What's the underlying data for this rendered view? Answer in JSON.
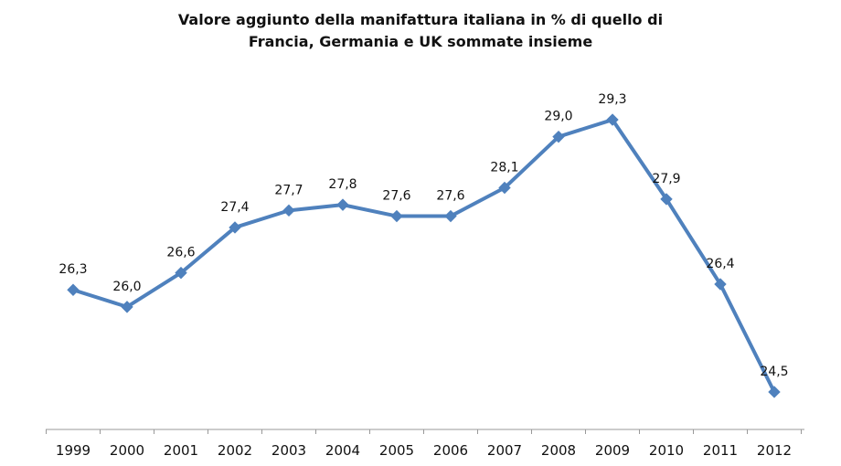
{
  "chart_data": {
    "type": "line",
    "title_lines": [
      "Valore aggiunto della manifattura italiana in % di quello di",
      "Francia, Germania e UK sommate insieme"
    ],
    "xlabel": "",
    "ylabel": "",
    "categories": [
      "1999",
      "2000",
      "2001",
      "2002",
      "2003",
      "2004",
      "2005",
      "2006",
      "2007",
      "2008",
      "2009",
      "2010",
      "2011",
      "2012"
    ],
    "values": [
      26.3,
      26.0,
      26.6,
      27.4,
      27.7,
      27.8,
      27.6,
      27.6,
      28.1,
      29.0,
      29.3,
      27.9,
      26.4,
      24.5
    ],
    "data_labels": [
      "26,3",
      "26,0",
      "26,6",
      "27,4",
      "27,7",
      "27,8",
      "27,6",
      "27,6",
      "28,1",
      "29,0",
      "29,3",
      "27,9",
      "26,4",
      "24,5"
    ],
    "ylim": [
      24.0,
      29.8
    ],
    "marker": "diamond",
    "grid": false,
    "legend": "none",
    "colors": {
      "line": "#4F81BD",
      "axis": "#999999",
      "text": "#111111"
    }
  }
}
